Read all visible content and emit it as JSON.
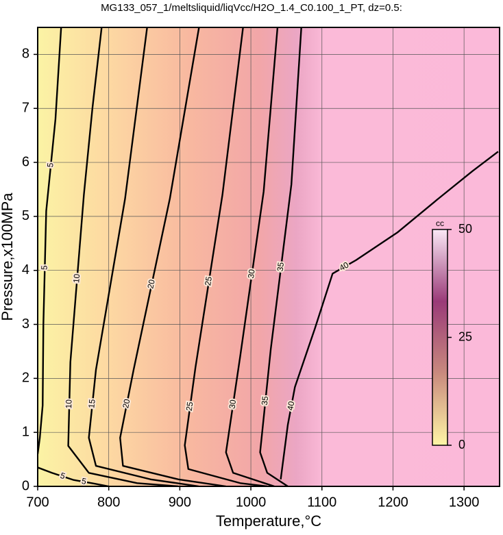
{
  "chart_data": {
    "type": "contour",
    "title": "MG133_057_1/meltsliquid/liqVcc/H2O_1.4_C0.100_1_PT, dz=0.5:",
    "xlabel": "Temperature,°C",
    "ylabel": "Pressure,x100MPa",
    "xlim": [
      700,
      1350
    ],
    "xticks": [
      700,
      800,
      900,
      1000,
      1100,
      1200,
      1300
    ],
    "ylim": [
      0,
      8.5
    ],
    "yticks": [
      0,
      1,
      2,
      3,
      4,
      5,
      6,
      7,
      8
    ],
    "grid": true,
    "line_color": "#000000",
    "contours": [
      {
        "level": 5,
        "x": [
          733,
          725,
          712,
          708,
          707,
          703,
          700
        ],
        "y": [
          8.5,
          6.8,
          5.1,
          3,
          1.5,
          0.9,
          0.6
        ]
      },
      {
        "level": 5,
        "x": [
          700,
          720,
          750,
          780,
          800
        ],
        "y": [
          0.35,
          0.25,
          0.12,
          0.05,
          0
        ]
      },
      {
        "level": 10,
        "x": [
          790,
          777,
          765,
          746,
          743,
          772,
          840,
          898
        ],
        "y": [
          8.5,
          7,
          5.4,
          2.3,
          0.75,
          0.25,
          0.06,
          0
        ]
      },
      {
        "level": 15,
        "x": [
          854,
          823,
          782,
          772,
          782,
          859,
          927
        ],
        "y": [
          8.5,
          5.33,
          2.16,
          0.9,
          0.38,
          0.13,
          0
        ]
      },
      {
        "level": 20,
        "x": [
          927,
          886,
          835,
          816,
          820,
          898,
          965
        ],
        "y": [
          8.5,
          5.33,
          2.16,
          0.9,
          0.38,
          0.13,
          0
        ]
      },
      {
        "level": 25,
        "x": [
          989,
          960,
          922,
          907,
          912,
          985,
          1023
        ],
        "y": [
          8.5,
          5.4,
          2.2,
          0.76,
          0.32,
          0.06,
          0
        ]
      },
      {
        "level": 30,
        "x": [
          1037.5,
          1018,
          985,
          965,
          975,
          1033
        ],
        "y": [
          8.5,
          5.46,
          2.41,
          0.63,
          0.25,
          0
        ]
      },
      {
        "level": 35,
        "x": [
          1071,
          1057,
          1028,
          1013,
          1023,
          1052
        ],
        "y": [
          8.5,
          5.59,
          2.54,
          0.63,
          0.25,
          0
        ]
      },
      {
        "level": 40,
        "x": [
          1042,
          1052,
          1062,
          1090,
          1115,
          1148,
          1206,
          1264,
          1312,
          1348
        ],
        "y": [
          0.13,
          1.14,
          1.84,
          2.92,
          3.94,
          4.19,
          4.7,
          5.33,
          5.84,
          6.2
        ]
      }
    ],
    "colorbar": {
      "label": "cc",
      "lim": [
        0,
        50
      ],
      "ticks": [
        0,
        25,
        50
      ],
      "colors": [
        "#fff6a6",
        "#c98a7e",
        "#9a3a78",
        "#fbe8f6"
      ]
    }
  }
}
